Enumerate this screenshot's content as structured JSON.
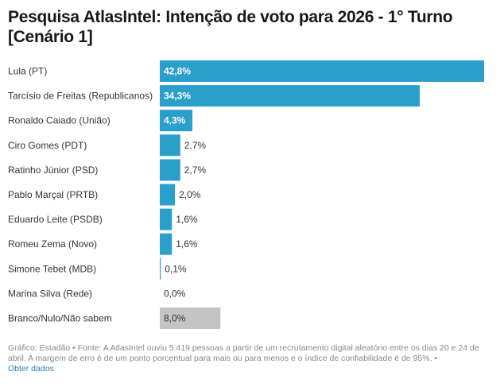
{
  "chart_data": {
    "type": "bar",
    "orientation": "horizontal",
    "title": "Pesquisa AtlasIntel: Intenção de voto para 2026 - 1° Turno [Cenário 1]",
    "xlabel": "",
    "ylabel": "",
    "xlim": [
      0,
      42.8
    ],
    "grid": false,
    "legend": "none",
    "categories": [
      "Lula (PT)",
      "Tarcísio de Freitas (Republicanos)",
      "Ronaldo Caiado (União)",
      "Ciro Gomes (PDT)",
      "Ratinho Júnior (PSD)",
      "Pablo Marçal (PRTB)",
      "Eduardo Leite (PSDB)",
      "Romeu Zema (Novo)",
      "Simone Tebet (MDB)",
      "Marina Silva (Rede)",
      "Branco/Nulo/Não sabem"
    ],
    "values": [
      42.8,
      34.3,
      4.3,
      2.7,
      2.7,
      2.0,
      1.6,
      1.6,
      0.1,
      0.0,
      8.0
    ],
    "value_labels": [
      "42,8%",
      "34,3%",
      "4,3%",
      "2,7%",
      "2,7%",
      "2,0%",
      "1,6%",
      "1,6%",
      "0,1%",
      "0,0%",
      "8,0%"
    ],
    "colors": {
      "candidate": "#2b9fcc",
      "other": "#c4c4c4"
    },
    "highlight_gray_categories": [
      "Branco/Nulo/Não sabem"
    ]
  },
  "footer": {
    "credit": "Gráfico: Estadão",
    "separator": "•",
    "source": "Fonte: A AtlasIntel ouviu 5.419 pessoas a partir de um recrutamento digital aleatório entre os dias 20 e 24 de abril. A margem de erro é de um ponto porcentual para mais ou para menos e o índice de confiabilidade é de 95%.",
    "link": "Obter dados"
  }
}
